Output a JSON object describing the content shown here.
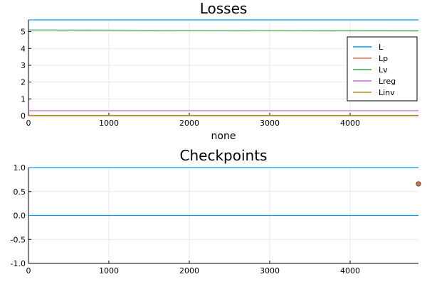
{
  "chart_data": [
    {
      "type": "line",
      "title": "Losses",
      "xlabel": "none",
      "ylabel": "",
      "xlim": [
        0,
        4850
      ],
      "ylim": [
        0,
        5.7
      ],
      "x_ticks": [
        0,
        1000,
        2000,
        3000,
        4000
      ],
      "x_tick_labels": [
        "0",
        "1000",
        "2000",
        "3000",
        "4000"
      ],
      "y_ticks": [
        0,
        1,
        2,
        3,
        4,
        5
      ],
      "y_tick_labels": [
        "0",
        "1",
        "2",
        "3",
        "4",
        "5"
      ],
      "grid": true,
      "legend_position": "top-right",
      "series": [
        {
          "name": "L",
          "color": "#009af9",
          "x": [
            0,
            4850
          ],
          "y": [
            5.7,
            5.7
          ]
        },
        {
          "name": "Lp",
          "color": "#e26f46",
          "x": [
            0,
            4850
          ],
          "y": [
            0.02,
            0.02
          ]
        },
        {
          "name": "Lv",
          "color": "#3da44d",
          "x": [
            0,
            4850
          ],
          "y": [
            5.1,
            5.05
          ]
        },
        {
          "name": "Lreg",
          "color": "#c271d2",
          "x": [
            0,
            4850
          ],
          "y": [
            0.3,
            0.3
          ]
        },
        {
          "name": "Linv",
          "color": "#ac8d18",
          "x": [
            0,
            4850
          ],
          "y": [
            0.01,
            0.01
          ]
        }
      ]
    },
    {
      "type": "line",
      "title": "Checkpoints",
      "xlabel": "",
      "ylabel": "",
      "xlim": [
        0,
        4850
      ],
      "ylim": [
        -1.0,
        1.0
      ],
      "x_ticks": [
        0,
        1000,
        2000,
        3000,
        4000
      ],
      "x_tick_labels": [
        "0",
        "1000",
        "2000",
        "3000",
        "4000"
      ],
      "y_ticks": [
        -1.0,
        -0.5,
        0.0,
        0.5,
        1.0
      ],
      "y_tick_labels": [
        "-1.0",
        "-0.5",
        "0.0",
        "0.5",
        "1.0"
      ],
      "grid": true,
      "series": [
        {
          "color": "#009af9",
          "x": [
            0,
            4850
          ],
          "y": [
            1.0,
            1.0
          ]
        },
        {
          "color": "#009af9",
          "x": [
            0,
            4850
          ],
          "y": [
            0.0,
            0.0
          ]
        }
      ],
      "markers": [
        {
          "x": 4850,
          "y": 0.66,
          "color": "#e26f46"
        }
      ]
    }
  ]
}
